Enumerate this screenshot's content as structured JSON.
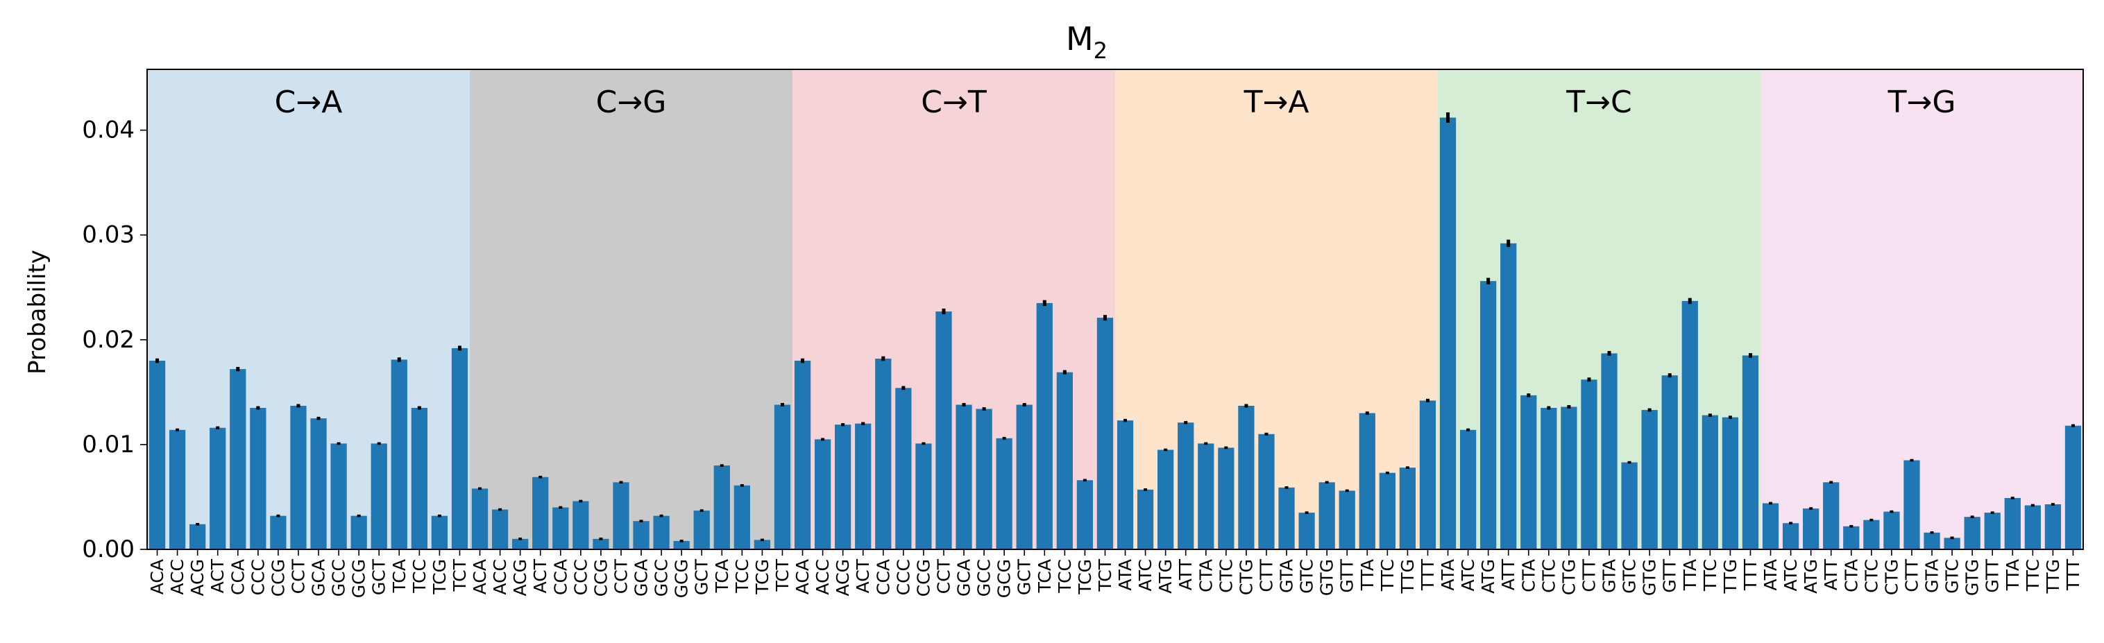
{
  "chart_data": {
    "type": "bar",
    "title": "M",
    "title_sub": "2",
    "ylabel": "Probability",
    "xlabel": "",
    "ylim": [
      0,
      0.0458
    ],
    "yticks": [
      "0.00",
      "0.01",
      "0.02",
      "0.03",
      "0.04"
    ],
    "ytick_values": [
      0,
      0.01,
      0.02,
      0.03,
      0.04
    ],
    "bar_color": "#1f77b4",
    "error_bar_color": "#000000",
    "groups": [
      {
        "label": "C→A",
        "color": "#d0e2ef",
        "categories": [
          "ACA",
          "ACC",
          "ACG",
          "ACT",
          "CCA",
          "CCC",
          "CCG",
          "CCT",
          "GCA",
          "GCC",
          "GCG",
          "GCT",
          "TCA",
          "TCC",
          "TCG",
          "TCT"
        ],
        "values": [
          0.018,
          0.0114,
          0.0024,
          0.0116,
          0.0172,
          0.0135,
          0.0032,
          0.0137,
          0.0125,
          0.0101,
          0.0032,
          0.0101,
          0.0181,
          0.0135,
          0.0032,
          0.0192
        ]
      },
      {
        "label": "C→G",
        "color": "#cacaca",
        "categories": [
          "ACA",
          "ACC",
          "ACG",
          "ACT",
          "CCA",
          "CCC",
          "CCG",
          "CCT",
          "GCA",
          "GCC",
          "GCG",
          "GCT",
          "TCA",
          "TCC",
          "TCG",
          "TCT"
        ],
        "values": [
          0.0058,
          0.0038,
          0.001,
          0.0069,
          0.004,
          0.0046,
          0.001,
          0.0064,
          0.0027,
          0.0032,
          0.0008,
          0.0037,
          0.008,
          0.0061,
          0.0009,
          0.0138
        ]
      },
      {
        "label": "C→T",
        "color": "#f5d3d6",
        "categories": [
          "ACA",
          "ACC",
          "ACG",
          "ACT",
          "CCA",
          "CCC",
          "CCG",
          "CCT",
          "GCA",
          "GCC",
          "GCG",
          "GCT",
          "TCA",
          "TCC",
          "TCG",
          "TCT"
        ],
        "values": [
          0.018,
          0.0105,
          0.0119,
          0.012,
          0.0182,
          0.0154,
          0.0101,
          0.0227,
          0.0138,
          0.0134,
          0.0106,
          0.0138,
          0.0235,
          0.0169,
          0.0066,
          0.0221
        ]
      },
      {
        "label": "T→A",
        "color": "#fde4cb",
        "categories": [
          "ATA",
          "ATC",
          "ATG",
          "ATT",
          "CTA",
          "CTC",
          "CTG",
          "CTT",
          "GTA",
          "GTC",
          "GTG",
          "GTT",
          "TTA",
          "TTC",
          "TTG",
          "TTT"
        ],
        "values": [
          0.0123,
          0.0057,
          0.0095,
          0.0121,
          0.0101,
          0.0097,
          0.0137,
          0.011,
          0.0059,
          0.0035,
          0.0064,
          0.0056,
          0.013,
          0.0073,
          0.0078,
          0.0142
        ]
      },
      {
        "label": "T→C",
        "color": "#d4edd4",
        "categories": [
          "ATA",
          "ATC",
          "ATG",
          "ATT",
          "CTA",
          "CTC",
          "CTG",
          "CTT",
          "GTA",
          "GTC",
          "GTG",
          "GTT",
          "TTA",
          "TTC",
          "TTG",
          "TTT"
        ],
        "values": [
          0.0412,
          0.0114,
          0.0256,
          0.0292,
          0.0147,
          0.0135,
          0.0136,
          0.0162,
          0.0187,
          0.0083,
          0.0133,
          0.0166,
          0.0237,
          0.0128,
          0.0126,
          0.0185
        ]
      },
      {
        "label": "T→G",
        "color": "#f8e1f1",
        "categories": [
          "ATA",
          "ATC",
          "ATG",
          "ATT",
          "CTA",
          "CTC",
          "CTG",
          "CTT",
          "GTA",
          "GTC",
          "GTG",
          "GTT",
          "TTA",
          "TTC",
          "TTG",
          "TTT"
        ],
        "values": [
          0.0044,
          0.0025,
          0.0039,
          0.0064,
          0.0022,
          0.0028,
          0.0036,
          0.0085,
          0.0016,
          0.0011,
          0.0031,
          0.0035,
          0.0049,
          0.0042,
          0.0043,
          0.0118
        ]
      }
    ]
  }
}
